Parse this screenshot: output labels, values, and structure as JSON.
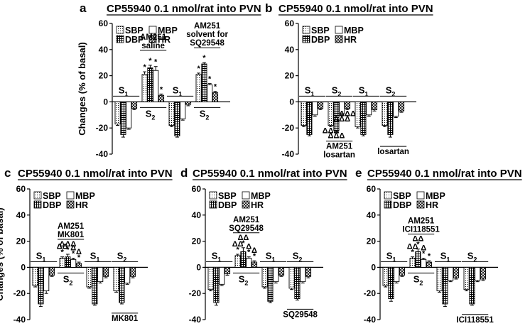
{
  "chart_data": [
    {
      "type": "bar",
      "panel_label": "a",
      "title": "CP55940 0.1 nmol/rat into PVN",
      "ylabel": "Changes  (% of basal)",
      "ylim": [
        -40,
        60
      ],
      "yticks": [
        "-40",
        "-20",
        "0",
        "20",
        "40",
        "60"
      ],
      "series_names": [
        "SBP",
        "MBP",
        "DBP",
        "HR"
      ],
      "groups": [
        {
          "session": "S",
          "sub": "1",
          "values": [
            -17,
            -20,
            -25,
            -5
          ],
          "errors": [
            1,
            1,
            2,
            1
          ],
          "sig": [
            "",
            "",
            "",
            ""
          ]
        },
        {
          "session": "S",
          "sub": "2",
          "values": [
            21,
            24,
            26,
            5
          ],
          "errors": [
            2,
            3,
            2,
            1
          ],
          "sig": [
            "*",
            "*",
            "*",
            "*"
          ],
          "treatment": "AM251\nsaline"
        },
        {
          "session": "S",
          "sub": "1",
          "values": [
            -18,
            -13,
            -26,
            -2
          ],
          "errors": [
            1,
            1,
            1,
            1
          ],
          "sig": [
            "",
            "",
            "",
            ""
          ]
        },
        {
          "session": "S",
          "sub": "2",
          "values": [
            21,
            13,
            29,
            7
          ],
          "errors": [
            1,
            1,
            1,
            1
          ],
          "sig": [
            "*",
            "*",
            "*",
            "*"
          ],
          "treatment": "AM251\nsolvent for\nSQ29548"
        }
      ]
    },
    {
      "type": "bar",
      "panel_label": "b",
      "title": "CP55940 0.1 nmol/rat into PVN",
      "ylim": [
        -40,
        60
      ],
      "yticks": [
        "-40",
        "-20",
        "0",
        "20",
        "40",
        "60"
      ],
      "series_names": [
        "SBP",
        "MBP",
        "DBP",
        "HR"
      ],
      "groups": [
        {
          "session": "S",
          "sub": "1",
          "values": [
            -18,
            -10,
            -25,
            -5
          ],
          "errors": [
            1,
            1,
            1,
            1
          ],
          "sig": [
            "",
            "",
            "",
            ""
          ]
        },
        {
          "session": "S",
          "sub": "2",
          "values": [
            -18,
            -9,
            -22,
            -5
          ],
          "errors": [
            1,
            1,
            1,
            1
          ],
          "sig": [
            "ΔΔΔ",
            "ΔΔΔ",
            "ΔΔΔ",
            "ΔΔΔ"
          ],
          "treatment": "AM251\nlosartan"
        },
        {
          "session": "S",
          "sub": "1",
          "values": [
            -19,
            -10,
            -25,
            -6
          ],
          "errors": [
            1,
            1,
            1,
            1
          ],
          "sig": [
            "",
            "",
            "",
            ""
          ]
        },
        {
          "session": "S",
          "sub": "2",
          "values": [
            -18,
            -11,
            -25,
            -7
          ],
          "errors": [
            1,
            1,
            2,
            1
          ],
          "sig": [
            "",
            "",
            "",
            ""
          ],
          "treatment": "losartan"
        }
      ]
    },
    {
      "type": "bar",
      "panel_label": "c",
      "title": "CP55940 0.1 nmol/rat into PVN",
      "ylabel": "Changes  (% of basal)",
      "ylim": [
        -40,
        60
      ],
      "yticks": [
        "-40",
        "-20",
        "0",
        "20",
        "40",
        "60"
      ],
      "series_names": [
        "SBP",
        "MBP",
        "DBP",
        "HR"
      ],
      "groups": [
        {
          "session": "S",
          "sub": "1",
          "values": [
            -14,
            -18,
            -28,
            -6
          ],
          "errors": [
            1,
            2,
            2,
            1
          ],
          "sig": [
            "",
            "",
            "",
            ""
          ]
        },
        {
          "session": "S",
          "sub": "2",
          "values": [
            7,
            6,
            8,
            3
          ],
          "errors": [
            1,
            1,
            2,
            1
          ],
          "sig": [
            "ΔΔ\n*",
            "Δ\n*",
            "ΔΔΔ\n*",
            "Δ\n*"
          ],
          "treatment": "AM251\nMK801"
        },
        {
          "session": "S",
          "sub": "1",
          "values": [
            -15,
            -11,
            -28,
            -7
          ],
          "errors": [
            1,
            1,
            1,
            1
          ],
          "sig": [
            "",
            "",
            "",
            ""
          ]
        },
        {
          "session": "S",
          "sub": "2",
          "values": [
            -18,
            -12,
            -27,
            -7
          ],
          "errors": [
            1,
            1,
            1,
            1
          ],
          "sig": [
            "",
            "",
            "",
            ""
          ],
          "treatment": "MK801"
        }
      ]
    },
    {
      "type": "bar",
      "panel_label": "d",
      "title": "CP55940 0.1 nmol/rat into PVN",
      "ylim": [
        -40,
        60
      ],
      "yticks": [
        "-40",
        "-20",
        "0",
        "20",
        "40",
        "60"
      ],
      "series_names": [
        "SBP",
        "MBP",
        "DBP",
        "HR"
      ],
      "groups": [
        {
          "session": "S",
          "sub": "1",
          "values": [
            -17,
            -13,
            -27,
            -5
          ],
          "errors": [
            1,
            1,
            2,
            1
          ],
          "sig": [
            "",
            "",
            "",
            ""
          ]
        },
        {
          "session": "S",
          "sub": "2",
          "values": [
            9,
            7,
            12,
            4
          ],
          "errors": [
            1,
            1,
            3,
            1
          ],
          "sig": [
            "ΔΔ\n*",
            "Δ\n*",
            "ΔΔ\n*",
            "Δ\n*"
          ],
          "treatment": "AM251\nSQ29548"
        },
        {
          "session": "S",
          "sub": "1",
          "values": [
            -15,
            -11,
            -26,
            -6
          ],
          "errors": [
            1,
            1,
            1,
            1
          ],
          "sig": [
            "",
            "",
            "",
            ""
          ]
        },
        {
          "session": "S",
          "sub": "2",
          "values": [
            -16,
            -11,
            -24,
            -7
          ],
          "errors": [
            1,
            1,
            1,
            1
          ],
          "sig": [
            "",
            "",
            "",
            ""
          ],
          "treatment": "SQ29548"
        }
      ]
    },
    {
      "type": "bar",
      "panel_label": "e",
      "title": "CP55940 0.1 nmol/rat into PVN",
      "ylim": [
        -40,
        60
      ],
      "yticks": [
        "-40",
        "-20",
        "0",
        "20",
        "40",
        "60"
      ],
      "series_names": [
        "SBP",
        "MBP",
        "DBP",
        "HR"
      ],
      "groups": [
        {
          "session": "S",
          "sub": "1",
          "values": [
            -14,
            -11,
            -24,
            -6
          ],
          "errors": [
            1,
            1,
            2,
            1
          ],
          "sig": [
            "",
            "",
            "",
            ""
          ]
        },
        {
          "session": "S",
          "sub": "2",
          "values": [
            7,
            6,
            12,
            4
          ],
          "errors": [
            1,
            1,
            2,
            1
          ],
          "sig": [
            "ΔΔ\n*",
            "Δ\n*",
            "ΔΔ\n*",
            "*"
          ],
          "treatment": "AM251\nICI118551"
        },
        {
          "session": "S",
          "sub": "1",
          "values": [
            -18,
            -10,
            -28,
            -8
          ],
          "errors": [
            1,
            1,
            2,
            1
          ],
          "sig": [
            "",
            "",
            "",
            ""
          ]
        },
        {
          "session": "S",
          "sub": "2",
          "values": [
            -17,
            -10,
            -28,
            -9
          ],
          "errors": [
            1,
            1,
            1,
            1
          ],
          "sig": [
            "",
            "",
            "",
            ""
          ],
          "treatment": "ICI118551"
        }
      ]
    }
  ]
}
